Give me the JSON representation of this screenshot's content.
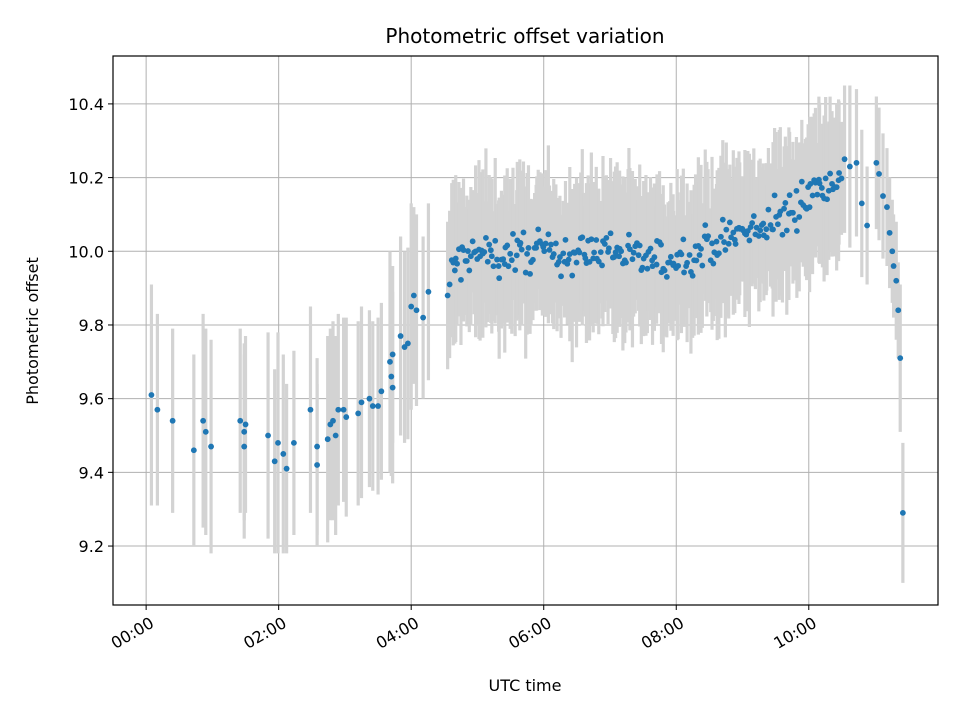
{
  "chart_data": {
    "type": "scatter",
    "title": "Photometric offset variation",
    "xlabel": "UTC time",
    "ylabel": "Photometric offset",
    "x_unit": "hours",
    "xlim": [
      -0.5,
      11.95
    ],
    "ylim": [
      9.04,
      10.53
    ],
    "x_ticks": [
      0,
      2,
      4,
      6,
      8,
      10
    ],
    "x_tick_labels": [
      "00:00",
      "02:00",
      "04:00",
      "06:00",
      "08:00",
      "10:00"
    ],
    "y_ticks": [
      9.2,
      9.4,
      9.6,
      9.8,
      10.0,
      10.2,
      10.4
    ],
    "y_tick_labels": [
      "9.2",
      "9.4",
      "9.6",
      "9.8",
      "10.0",
      "10.2",
      "10.4"
    ],
    "grid": true,
    "colors": {
      "points": "#1f77b4",
      "errorbars": "#d3d3d3",
      "grid": "#b0b0b0"
    },
    "series": [
      {
        "x": [
          0.08,
          0.17,
          0.4,
          0.72,
          0.86,
          0.9,
          0.98,
          1.42,
          1.5,
          1.48,
          1.48,
          1.84,
          1.94,
          1.99,
          2.07,
          2.12,
          2.23,
          2.48,
          2.58,
          2.58,
          2.74,
          2.78,
          2.82,
          2.86,
          2.9,
          2.98,
          3.02,
          3.2,
          3.25,
          3.37,
          3.42,
          3.5,
          3.55,
          3.68,
          3.7,
          3.72,
          3.72,
          3.84,
          3.9,
          3.95,
          4.0,
          4.04,
          4.08,
          4.18,
          4.26,
          4.55,
          4.58
        ],
        "y": [
          9.61,
          9.57,
          9.54,
          9.46,
          9.54,
          9.51,
          9.47,
          9.54,
          9.53,
          9.51,
          9.47,
          9.5,
          9.43,
          9.48,
          9.45,
          9.41,
          9.48,
          9.57,
          9.47,
          9.42,
          9.49,
          9.53,
          9.54,
          9.5,
          9.57,
          9.57,
          9.55,
          9.56,
          9.59,
          9.6,
          9.58,
          9.58,
          9.62,
          9.7,
          9.66,
          9.63,
          9.72,
          9.77,
          9.74,
          9.75,
          9.85,
          9.88,
          9.84,
          9.82,
          9.89,
          9.88,
          9.91
        ],
        "err": [
          0.3,
          0.26,
          0.25,
          0.26,
          0.29,
          0.28,
          0.29,
          0.25,
          0.24,
          0.24,
          0.25,
          0.28,
          0.25,
          0.3,
          0.27,
          0.23,
          0.25,
          0.28,
          0.24,
          0.22,
          0.28,
          0.26,
          0.27,
          0.27,
          0.26,
          0.25,
          0.27,
          0.25,
          0.26,
          0.24,
          0.23,
          0.24,
          0.24,
          0.3,
          0.27,
          0.26,
          0.24,
          0.27,
          0.26,
          0.26,
          0.28,
          0.24,
          0.26,
          0.22,
          0.24,
          0.2,
          0.2
        ]
      },
      {
        "x": [
          10.54,
          10.62,
          10.72,
          10.8,
          10.88,
          11.02,
          11.06,
          11.12,
          11.18,
          11.22,
          11.26,
          11.28,
          11.32,
          11.35,
          11.38
        ],
        "y": [
          10.25,
          10.23,
          10.24,
          10.13,
          10.07,
          10.24,
          10.21,
          10.15,
          10.12,
          10.05,
          10.0,
          9.96,
          9.92,
          9.84,
          9.71
        ],
        "err": [
          0.2,
          0.22,
          0.2,
          0.2,
          0.16,
          0.18,
          0.18,
          0.17,
          0.16,
          0.15,
          0.14,
          0.14,
          0.16,
          0.13,
          0.2
        ]
      },
      {
        "x": [
          11.42
        ],
        "y": [
          9.29
        ],
        "err": [
          0.19
        ]
      }
    ],
    "trend": [
      [
        4.6,
        9.95
      ],
      [
        4.9,
        9.99
      ],
      [
        5.4,
        9.99
      ],
      [
        6.0,
        10.0
      ],
      [
        6.5,
        9.99
      ],
      [
        7.0,
        10.01
      ],
      [
        7.5,
        9.98
      ],
      [
        7.8,
        9.97
      ],
      [
        8.3,
        10.0
      ],
      [
        8.8,
        10.04
      ],
      [
        9.3,
        10.06
      ],
      [
        9.7,
        10.1
      ],
      [
        10.0,
        10.16
      ],
      [
        10.4,
        10.2
      ]
    ],
    "dense_range": [
      4.6,
      10.5
    ],
    "dense_scatter": 0.028,
    "dense_err_mean": 0.19,
    "dense_count": 260
  }
}
